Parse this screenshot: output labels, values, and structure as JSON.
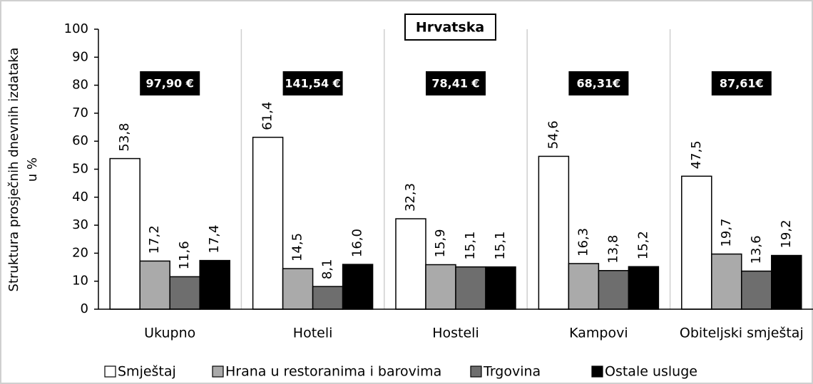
{
  "chart_data": {
    "type": "bar",
    "title": "Hrvatska",
    "ylabel": [
      "Struktura prosječnih dnevnih izdataka",
      "u %"
    ],
    "categories": [
      "Ukupno",
      "Hoteli",
      "Hosteli",
      "Kampovi",
      "Obiteljski smještaj"
    ],
    "annotations": [
      "97,90 €",
      "141,54 €",
      "78,41 €",
      "68,31€",
      "87,61€"
    ],
    "series": [
      {
        "name": "Smještaj",
        "color": "#ffffff",
        "values": [
          53.8,
          61.4,
          32.3,
          54.6,
          47.5
        ],
        "value_labels": [
          "53,8",
          "61,4",
          "32,3",
          "54,6",
          "47,5"
        ]
      },
      {
        "name": "Hrana u restoranima i barovima",
        "color": "#aaaaaa",
        "values": [
          17.2,
          14.5,
          15.9,
          16.3,
          19.7
        ],
        "value_labels": [
          "17,2",
          "14,5",
          "15,9",
          "16,3",
          "19,7"
        ]
      },
      {
        "name": "Trgovina",
        "color": "#6e6e6e",
        "values": [
          11.6,
          8.1,
          15.1,
          13.8,
          13.6
        ],
        "value_labels": [
          "11,6",
          "8,1",
          "15,1",
          "13,8",
          "13,6"
        ]
      },
      {
        "name": "Ostale usluge",
        "color": "#000000",
        "values": [
          17.4,
          16.0,
          15.1,
          15.2,
          19.2
        ],
        "value_labels": [
          "17,4",
          "16,0",
          "15,1",
          "15,2",
          "19,2"
        ]
      }
    ],
    "ylim": [
      0,
      100
    ],
    "yticks": [
      0,
      10,
      20,
      30,
      40,
      50,
      60,
      70,
      80,
      90,
      100
    ],
    "legend": "bottom"
  }
}
